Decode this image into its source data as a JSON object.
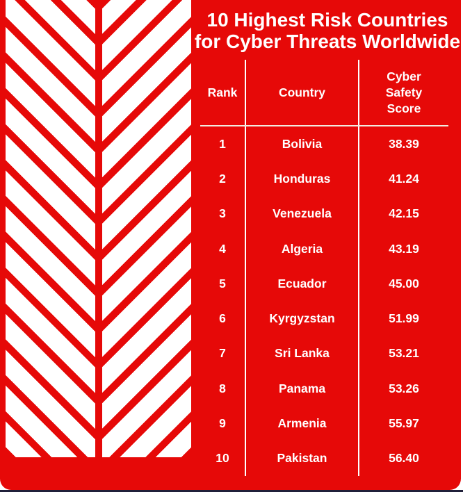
{
  "title": {
    "line1": "10 Highest Risk Countries",
    "line2": "for Cyber Threats Worldwide"
  },
  "table": {
    "headers": {
      "rank": "Rank",
      "country": "Country",
      "score": "Cyber Safety Score"
    },
    "rows": [
      {
        "rank": "1",
        "country": "Bolivia",
        "score": "38.39"
      },
      {
        "rank": "2",
        "country": "Honduras",
        "score": "41.24"
      },
      {
        "rank": "3",
        "country": "Venezuela",
        "score": "42.15"
      },
      {
        "rank": "4",
        "country": "Algeria",
        "score": "43.19"
      },
      {
        "rank": "5",
        "country": "Ecuador",
        "score": "45.00"
      },
      {
        "rank": "6",
        "country": "Kyrgyzstan",
        "score": "51.99"
      },
      {
        "rank": "7",
        "country": "Sri Lanka",
        "score": "53.21"
      },
      {
        "rank": "8",
        "country": "Panama",
        "score": "53.26"
      },
      {
        "rank": "9",
        "country": "Armenia",
        "score": "55.97"
      },
      {
        "rank": "10",
        "country": "Pakistan",
        "score": "56.40"
      }
    ]
  },
  "colors": {
    "card_red": "#e60908",
    "text_white": "#ffffff",
    "header_underline": "#f2ece0",
    "bottom_bar": "#20203a"
  },
  "chart_data": {
    "type": "table",
    "title": "10 Highest Risk Countries for Cyber Threats Worldwide",
    "columns": [
      "Rank",
      "Country",
      "Cyber Safety Score"
    ],
    "rows": [
      [
        1,
        "Bolivia",
        38.39
      ],
      [
        2,
        "Honduras",
        41.24
      ],
      [
        3,
        "Venezuela",
        42.15
      ],
      [
        4,
        "Algeria",
        43.19
      ],
      [
        5,
        "Ecuador",
        45.0
      ],
      [
        6,
        "Kyrgyzstan",
        51.99
      ],
      [
        7,
        "Sri Lanka",
        53.21
      ],
      [
        8,
        "Panama",
        53.26
      ],
      [
        9,
        "Armenia",
        55.97
      ],
      [
        10,
        "Pakistan",
        56.4
      ]
    ],
    "layout_hints": {
      "background": "solid red card with white herringbone chevron pattern on left",
      "column_separators": "white vertical lines",
      "header_separator": "cream horizontal line"
    }
  }
}
